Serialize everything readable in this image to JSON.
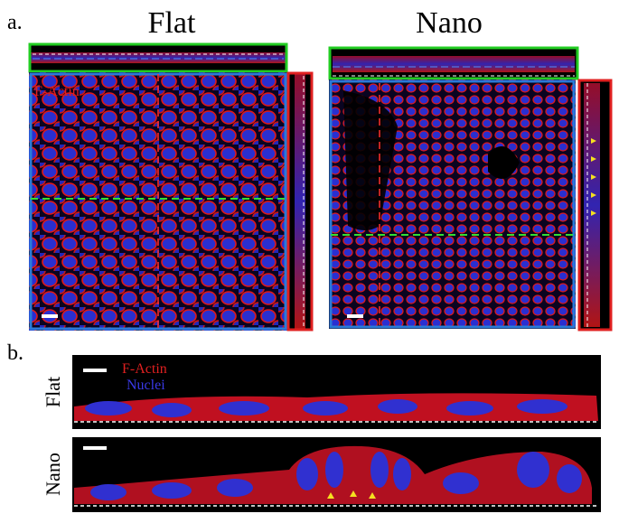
{
  "panel_a": {
    "label": "a.",
    "columns": [
      {
        "title": "Flat",
        "stain_label": "F-Actin"
      },
      {
        "title": "Nano"
      }
    ]
  },
  "panel_b": {
    "label": "b.",
    "rows": [
      {
        "label": "Flat",
        "legend": [
          "F-Actin",
          "Nuclei"
        ]
      },
      {
        "label": "Nano"
      }
    ]
  }
}
